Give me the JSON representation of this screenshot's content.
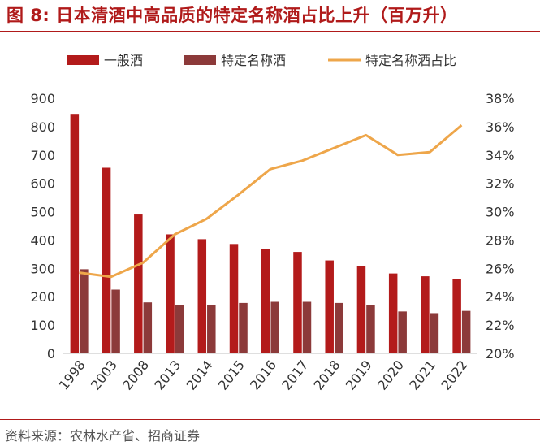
{
  "title": "图 8: 日本清酒中高品质的特定名称酒占比上升（百万升）",
  "source": "资料来源：农林水产省、招商证券",
  "colors": {
    "general": "#b31b1b",
    "special": "#8c3a3a",
    "ratio": "#eea64a",
    "accent": "#b01a1a"
  },
  "chart_data": {
    "type": "bar",
    "categories": [
      "1998",
      "2003",
      "2008",
      "2013",
      "2014",
      "2015",
      "2016",
      "2017",
      "2018",
      "2019",
      "2020",
      "2021",
      "2022"
    ],
    "series": [
      {
        "name": "一般酒",
        "axis": "left",
        "type": "bar",
        "values": [
          845,
          655,
          490,
          420,
          403,
          386,
          368,
          358,
          328,
          308,
          282,
          272,
          262
        ]
      },
      {
        "name": "特定名称酒",
        "axis": "left",
        "type": "bar",
        "values": [
          297,
          225,
          180,
          170,
          172,
          178,
          182,
          182,
          178,
          170,
          148,
          142,
          150
        ]
      },
      {
        "name": "特定名称酒占比",
        "axis": "right",
        "type": "line",
        "values": [
          25.7,
          25.4,
          26.4,
          28.4,
          29.5,
          31.2,
          33.0,
          33.6,
          34.5,
          35.4,
          34.0,
          34.2,
          36.1
        ]
      }
    ],
    "y_left": {
      "ylim": [
        0,
        900
      ],
      "ticks": [
        "0",
        "100",
        "200",
        "300",
        "400",
        "500",
        "600",
        "700",
        "800",
        "900"
      ]
    },
    "y_right": {
      "ylim": [
        20,
        38
      ],
      "ticks": [
        "20%",
        "22%",
        "24%",
        "26%",
        "28%",
        "30%",
        "32%",
        "34%",
        "36%",
        "38%"
      ]
    },
    "legend": "top",
    "grid": false
  }
}
